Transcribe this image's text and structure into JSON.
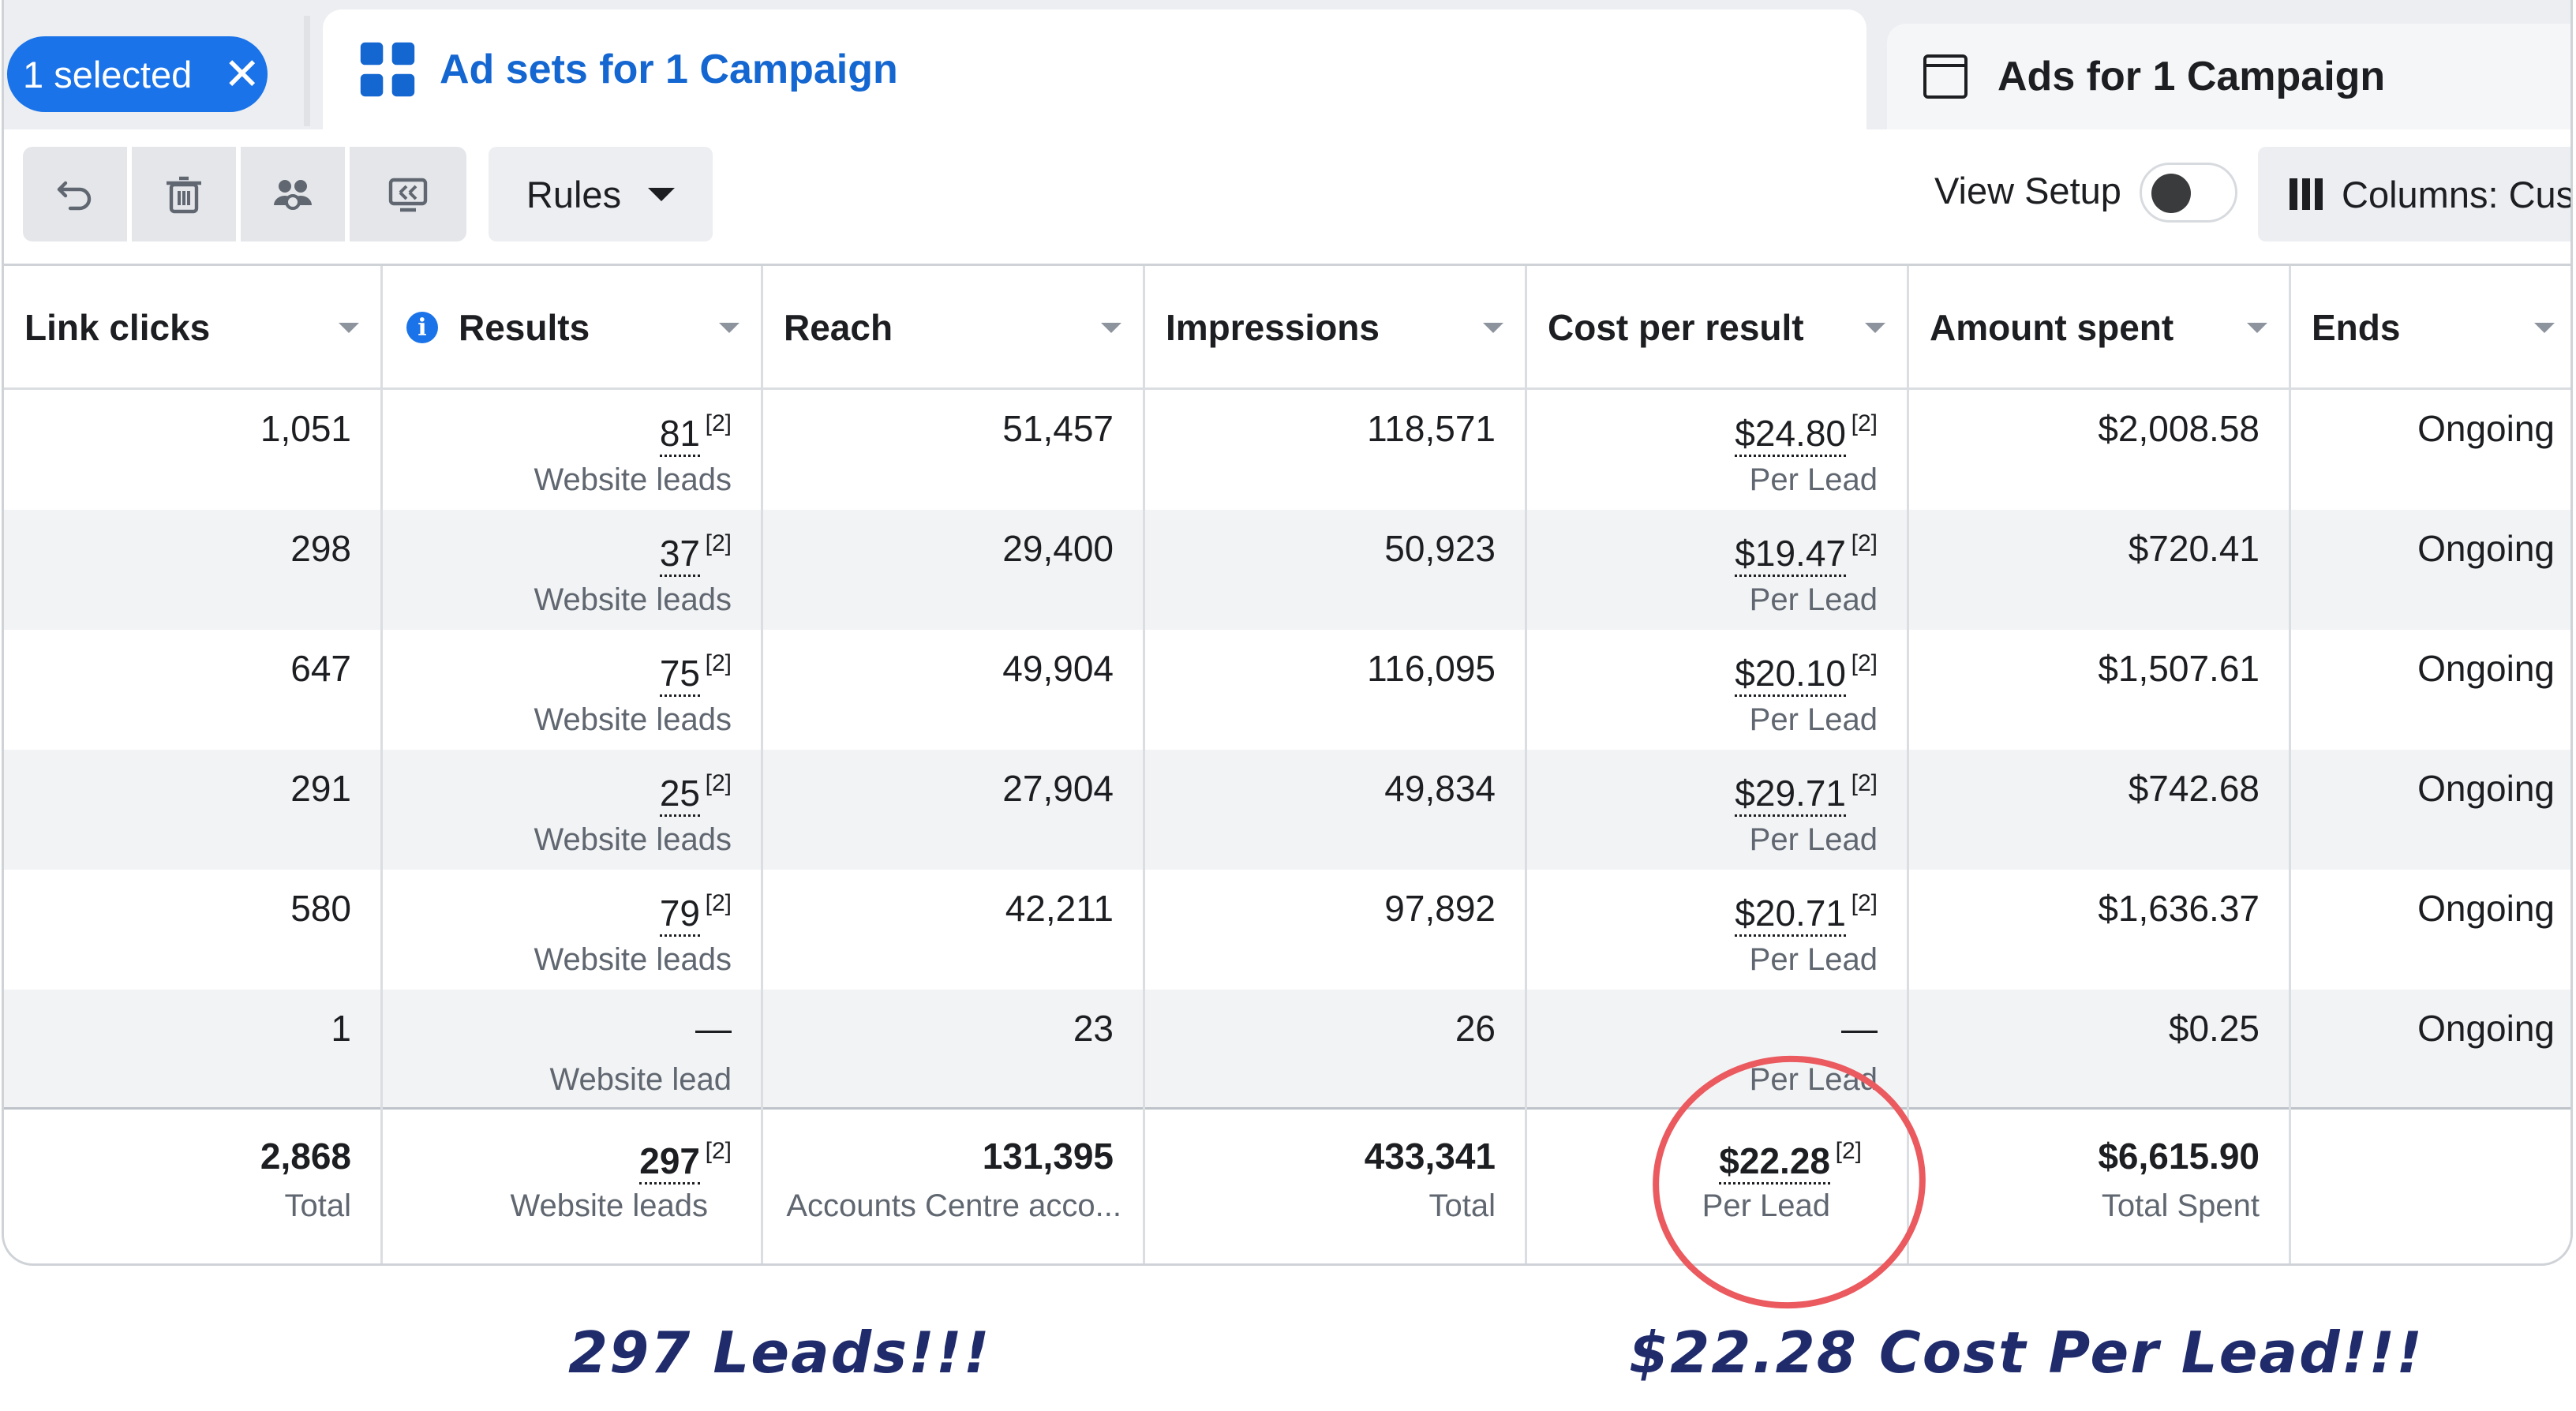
{
  "tabs": {
    "selected_pill": "1 selected",
    "active_tab": "Ad sets for 1 Campaign",
    "inactive_tab": "Ads for 1 Campaign"
  },
  "toolbar": {
    "rules_label": "Rules",
    "view_setup_label": "View Setup",
    "view_setup_on": false,
    "columns_label": "Columns: Cus"
  },
  "columns": [
    "Link clicks",
    "Results",
    "Reach",
    "Impressions",
    "Cost per result",
    "Amount spent",
    "Ends"
  ],
  "rows": [
    {
      "link_clicks": "1,051",
      "results": "81",
      "results_note": "[2]",
      "results_type": "Website leads",
      "reach": "51,457",
      "impressions": "118,571",
      "cpr": "$24.80",
      "cpr_note": "[2]",
      "cpr_type": "Per Lead",
      "spent": "$2,008.58",
      "ends": "Ongoing"
    },
    {
      "link_clicks": "298",
      "results": "37",
      "results_note": "[2]",
      "results_type": "Website leads",
      "reach": "29,400",
      "impressions": "50,923",
      "cpr": "$19.47",
      "cpr_note": "[2]",
      "cpr_type": "Per Lead",
      "spent": "$720.41",
      "ends": "Ongoing"
    },
    {
      "link_clicks": "647",
      "results": "75",
      "results_note": "[2]",
      "results_type": "Website leads",
      "reach": "49,904",
      "impressions": "116,095",
      "cpr": "$20.10",
      "cpr_note": "[2]",
      "cpr_type": "Per Lead",
      "spent": "$1,507.61",
      "ends": "Ongoing"
    },
    {
      "link_clicks": "291",
      "results": "25",
      "results_note": "[2]",
      "results_type": "Website leads",
      "reach": "27,904",
      "impressions": "49,834",
      "cpr": "$29.71",
      "cpr_note": "[2]",
      "cpr_type": "Per Lead",
      "spent": "$742.68",
      "ends": "Ongoing"
    },
    {
      "link_clicks": "580",
      "results": "79",
      "results_note": "[2]",
      "results_type": "Website leads",
      "reach": "42,211",
      "impressions": "97,892",
      "cpr": "$20.71",
      "cpr_note": "[2]",
      "cpr_type": "Per Lead",
      "spent": "$1,636.37",
      "ends": "Ongoing"
    },
    {
      "link_clicks": "1",
      "results": "—",
      "results_note": "",
      "results_type": "Website lead",
      "reach": "23",
      "impressions": "26",
      "cpr": "—",
      "cpr_note": "",
      "cpr_type": "Per Lead",
      "spent": "$0.25",
      "ends": "Ongoing"
    }
  ],
  "totals": {
    "link_clicks": "2,868",
    "link_clicks_sub": "Total",
    "results": "297",
    "results_note": "[2]",
    "results_sub": "Website leads",
    "reach": "131,395",
    "reach_sub": "Accounts Centre acco...",
    "impressions": "433,341",
    "impressions_sub": "Total",
    "cpr": "$22.28",
    "cpr_note": "[2]",
    "cpr_sub": "Per Lead",
    "spent": "$6,615.90",
    "spent_sub": "Total Spent"
  },
  "captions": {
    "left": "297 Leads!!!",
    "right": "$22.28 Cost Per Lead!!!"
  },
  "colors": {
    "accent": "#1a73e8",
    "annotation_circle": "#ea5a5f",
    "caption_text": "#1f2b6b"
  }
}
